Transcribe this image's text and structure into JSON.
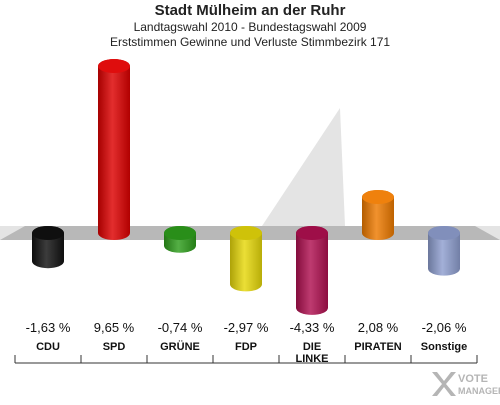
{
  "chart_data": {
    "type": "bar",
    "title": "Stadt Mülheim an der Ruhr",
    "subtitle_1": "Landtagswahl 2010 - Bundestagswahl 2009",
    "subtitle_2": "Erststimmen Gewinne und Verluste Stimmbezirk 171",
    "categories": [
      "CDU",
      "SPD",
      "GRÜNE",
      "FDP",
      "DIE LINKE",
      "PIRATEN",
      "Sonstige"
    ],
    "category_lines": [
      [
        "CDU"
      ],
      [
        "SPD"
      ],
      [
        "GRÜNE"
      ],
      [
        "FDP"
      ],
      [
        "DIE",
        "LINKE"
      ],
      [
        "PIRATEN"
      ],
      [
        "Sonstige"
      ]
    ],
    "values": [
      -1.63,
      9.65,
      -0.74,
      -2.97,
      -4.33,
      2.08,
      -2.06
    ],
    "value_labels": [
      "-1,63 %",
      "9,65 %",
      "-0,74 %",
      "-2,97 %",
      "-4,33 %",
      "2,08 %",
      "-2,06 %"
    ],
    "colors": [
      "#111111",
      "#dd0000",
      "#2e9e1c",
      "#e6d80a",
      "#b01050",
      "#ee7a00",
      "#8f9fd0"
    ],
    "xlabel": "",
    "ylabel": "",
    "ylim": [
      -4.33,
      9.65
    ]
  },
  "watermark": {
    "text": "VOTE MANAGER",
    "icon": "x-logo-icon"
  }
}
